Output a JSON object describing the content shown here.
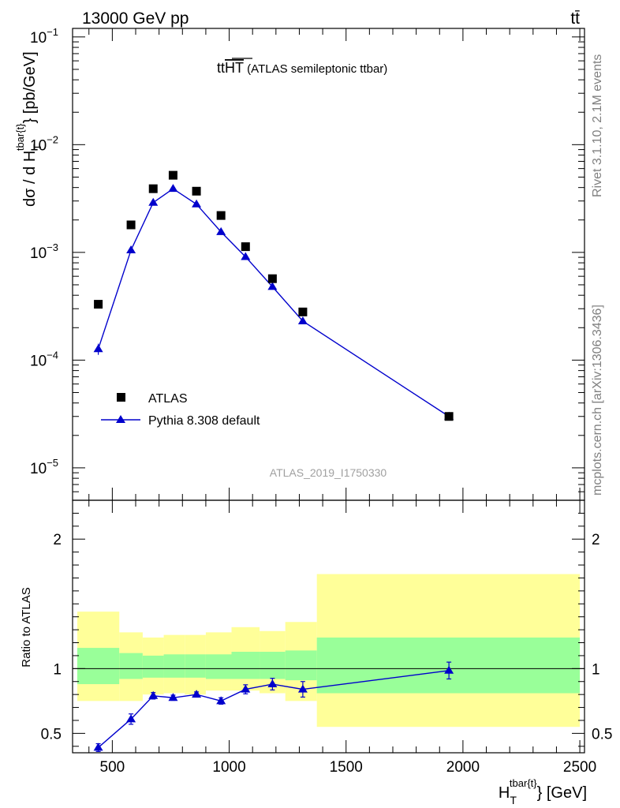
{
  "header": {
    "energy_label": "13000 GeV pp",
    "process_label": "tt̄"
  },
  "side_labels": {
    "rivet": "Rivet 3.1.10,  2.1M events",
    "mcplots": "mcplots.cern.ch [arXiv:1306.3436]"
  },
  "chart_data": [
    {
      "type": "scatter",
      "panel": "main",
      "title": "tt̄HT (ATLAS semileptonic ttbar)",
      "title_parts": {
        "main": "tt",
        "overline": "HT",
        "suffix": " (ATLAS semileptonic ttbar)"
      },
      "watermark": "ATLAS_2019_I1750330",
      "ylabel": "dσ / d H_T^{tbar{t}} [pb/GeV]",
      "ylabel_parts": {
        "pre": "dσ / d H",
        "sup": "tbar{t}",
        "sub": "T",
        "post": "} [pb/GeV]"
      },
      "yscale": "log",
      "ylim": [
        5e-06,
        0.12
      ],
      "xlim": [
        330,
        2520
      ],
      "ytick_labels": [
        {
          "value": 0.1,
          "base": "10",
          "exp": "−1"
        },
        {
          "value": 0.01,
          "base": "10",
          "exp": "−2"
        },
        {
          "value": 0.001,
          "base": "10",
          "exp": "−3"
        },
        {
          "value": 0.0001,
          "base": "10",
          "exp": "−4"
        },
        {
          "value": 1e-05,
          "base": "10",
          "exp": "−5"
        }
      ],
      "legend": {
        "position": "lower-left",
        "entries": [
          {
            "label": "ATLAS",
            "marker": "square",
            "color": "#000000"
          },
          {
            "label": "Pythia 8.308 default",
            "marker": "triangle",
            "color": "#0000cc"
          }
        ]
      },
      "series": [
        {
          "name": "ATLAS",
          "x": [
            440,
            580,
            675,
            760,
            860,
            965,
            1070,
            1185,
            1315,
            1940
          ],
          "values": [
            0.00033,
            0.0018,
            0.0039,
            0.0052,
            0.0037,
            0.0022,
            0.00113,
            0.00057,
            0.00028,
            3e-05
          ]
        },
        {
          "name": "Pythia 8.308 default",
          "x": [
            440,
            580,
            675,
            760,
            860,
            965,
            1070,
            1185,
            1315,
            1940
          ],
          "values": [
            0.000127,
            0.00105,
            0.0029,
            0.0039,
            0.0028,
            0.00155,
            0.00091,
            0.00048,
            0.00023,
            3e-05
          ],
          "errors": [
            1.5e-05,
            4e-05,
            7e-05,
            8e-05,
            7e-05,
            5e-05,
            4e-05,
            2e-05,
            1e-05,
            1.5e-06
          ]
        }
      ]
    },
    {
      "type": "line",
      "panel": "ratio",
      "ylabel": "Ratio to ATLAS",
      "xlabel": "H_T^{tbar{t}} [GeV]",
      "xlabel_parts": {
        "pre": "H",
        "sup": "tbar{t}",
        "sub": "T",
        "post": "} [GeV]"
      },
      "ylim": [
        0.35,
        2.3
      ],
      "xlim": [
        330,
        2520
      ],
      "xticks": [
        500,
        1000,
        1500,
        2000,
        2500
      ],
      "xtick_labels": [
        "500",
        "1000",
        "1500",
        "2000",
        "2500"
      ],
      "yticks": [
        0.5,
        1,
        2
      ],
      "ytick_labels": [
        "0.5",
        "1",
        "2"
      ],
      "reference_line": 1,
      "bands": [
        {
          "xlo": 350,
          "xhi": 530,
          "stat_lo": 0.88,
          "stat_hi": 1.16,
          "tot_lo": 0.75,
          "tot_hi": 1.44
        },
        {
          "xlo": 530,
          "xhi": 630,
          "stat_lo": 0.92,
          "stat_hi": 1.12,
          "tot_lo": 0.75,
          "tot_hi": 1.28
        },
        {
          "xlo": 630,
          "xhi": 720,
          "stat_lo": 0.93,
          "stat_hi": 1.1,
          "tot_lo": 0.8,
          "tot_hi": 1.24
        },
        {
          "xlo": 720,
          "xhi": 810,
          "stat_lo": 0.93,
          "stat_hi": 1.11,
          "tot_lo": 0.81,
          "tot_hi": 1.26
        },
        {
          "xlo": 810,
          "xhi": 900,
          "stat_lo": 0.93,
          "stat_hi": 1.11,
          "tot_lo": 0.8,
          "tot_hi": 1.26
        },
        {
          "xlo": 900,
          "xhi": 1010,
          "stat_lo": 0.92,
          "stat_hi": 1.11,
          "tot_lo": 0.83,
          "tot_hi": 1.28
        },
        {
          "xlo": 1010,
          "xhi": 1130,
          "stat_lo": 0.92,
          "stat_hi": 1.13,
          "tot_lo": 0.83,
          "tot_hi": 1.32
        },
        {
          "xlo": 1130,
          "xhi": 1240,
          "stat_lo": 0.92,
          "stat_hi": 1.13,
          "tot_lo": 0.81,
          "tot_hi": 1.29
        },
        {
          "xlo": 1240,
          "xhi": 1375,
          "stat_lo": 0.91,
          "stat_hi": 1.14,
          "tot_lo": 0.75,
          "tot_hi": 1.36
        },
        {
          "xlo": 1375,
          "xhi": 2500,
          "stat_lo": 0.81,
          "stat_hi": 1.24,
          "tot_lo": 0.55,
          "tot_hi": 1.73
        }
      ],
      "series": [
        {
          "name": "Pythia 8.308 default",
          "x": [
            440,
            580,
            675,
            760,
            860,
            965,
            1070,
            1185,
            1315,
            1940
          ],
          "values": [
            0.39,
            0.61,
            0.79,
            0.775,
            0.8,
            0.75,
            0.84,
            0.88,
            0.84,
            0.985
          ],
          "errors": [
            0.03,
            0.04,
            0.025,
            0.02,
            0.02,
            0.025,
            0.035,
            0.045,
            0.06,
            0.065
          ]
        }
      ]
    }
  ],
  "colors": {
    "data": "#000000",
    "mc": "#0000cc",
    "stat_band": "#99ff99",
    "total_band": "#ffff99",
    "watermark": "#a0a0a0",
    "side_text": "#808080"
  }
}
